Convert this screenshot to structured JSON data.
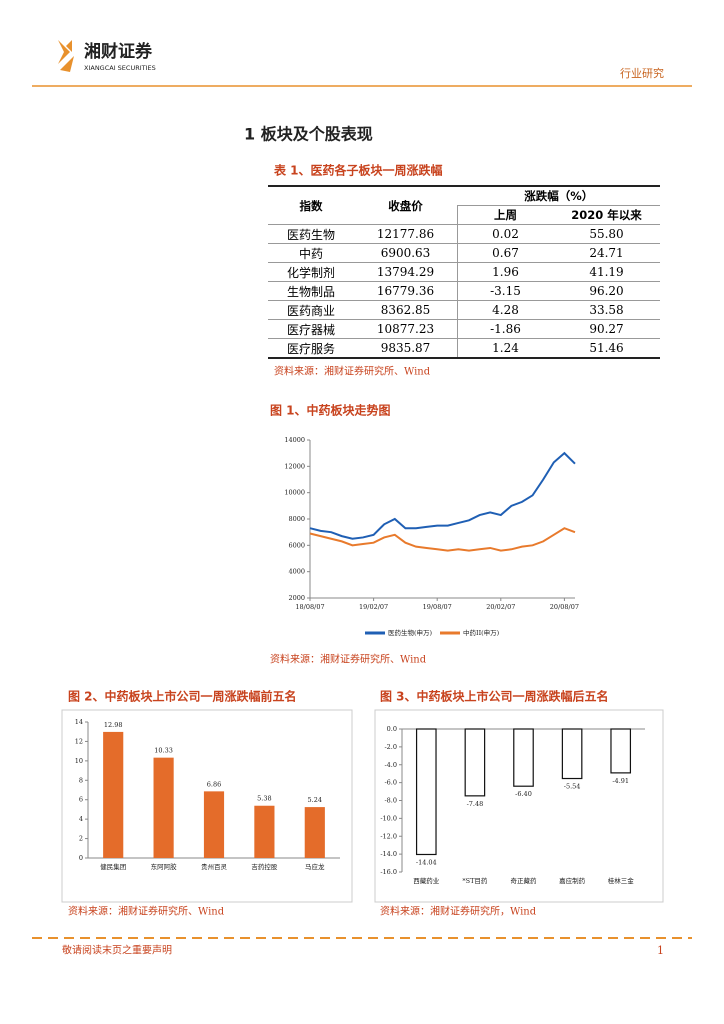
{
  "header": {
    "logo_cn": "湘财证券",
    "logo_en": "XIANGCAI SECURITIES",
    "category": "行业研究"
  },
  "section_title": "1 板块及个股表现",
  "table": {
    "caption": "表 1、医药各子板块一周涨跌幅",
    "headers": [
      "指数",
      "收盘价",
      "涨跌幅（%）",
      "上周",
      "2020 年以来"
    ],
    "rows": [
      [
        "医药生物",
        "12177.86",
        "0.02",
        "55.80"
      ],
      [
        "中药",
        "6900.63",
        "0.67",
        "24.71"
      ],
      [
        "化学制剂",
        "13794.29",
        "1.96",
        "41.19"
      ],
      [
        "生物制品",
        "16779.36",
        "-3.15",
        "96.20"
      ],
      [
        "医药商业",
        "8362.85",
        "4.28",
        "33.58"
      ],
      [
        "医疗器械",
        "10877.23",
        "-1.86",
        "90.27"
      ],
      [
        "医疗服务",
        "9835.87",
        "1.24",
        "51.46"
      ]
    ],
    "source": "资料来源：湘财证券研究所、Wind"
  },
  "chart_data": [
    {
      "type": "line",
      "title": "图 1、中药板块走势图",
      "categories": [
        "18/08/07",
        null,
        null,
        null,
        null,
        null,
        "19/02/07",
        null,
        null,
        null,
        null,
        null,
        "19/08/07",
        null,
        null,
        null,
        null,
        null,
        "20/02/07",
        null,
        null,
        null,
        null,
        null,
        "20/08/07",
        null
      ],
      "series": [
        {
          "name": "医药生物(申万)",
          "color": "#1f5fb4",
          "values": [
            7300,
            7100,
            7000,
            6700,
            6500,
            6600,
            6800,
            7600,
            8000,
            7300,
            7300,
            7400,
            7500,
            7500,
            7700,
            7900,
            8300,
            8500,
            8300,
            9000,
            9300,
            9800,
            11000,
            12300,
            13000,
            12200
          ]
        },
        {
          "name": "中药II(申万)",
          "color": "#e87a2c",
          "values": [
            6900,
            6700,
            6500,
            6300,
            6000,
            6100,
            6200,
            6600,
            6800,
            6200,
            5900,
            5800,
            5700,
            5600,
            5700,
            5600,
            5700,
            5800,
            5600,
            5700,
            5900,
            6000,
            6300,
            6800,
            7300,
            7000
          ]
        }
      ],
      "ylim": [
        2000,
        14000
      ],
      "yticks": [
        2000,
        4000,
        6000,
        8000,
        10000,
        12000,
        14000
      ],
      "source": "资料来源：湘财证券研究所、Wind"
    },
    {
      "type": "bar",
      "title": "图 2、中药板块上市公司一周涨跌幅前五名",
      "categories": [
        "健民集团",
        "东阿阿胶",
        "贵州百灵",
        "吉药控股",
        "马应龙"
      ],
      "values": [
        12.98,
        10.33,
        6.86,
        5.38,
        5.24
      ],
      "color": "#e46c2a",
      "ylim": [
        0,
        14
      ],
      "yticks": [
        0,
        2,
        4,
        6,
        8,
        10,
        12,
        14
      ],
      "source": "资料来源：湘财证券研究所、Wind"
    },
    {
      "type": "bar",
      "title": "图 3、中药板块上市公司一周涨跌幅后五名",
      "categories": [
        "西藏药业",
        "*ST目药",
        "奇正藏药",
        "嘉应制药",
        "桂林三金"
      ],
      "values": [
        -14.04,
        -7.48,
        -6.4,
        -5.54,
        -4.91
      ],
      "value_labels": [
        "-14.04",
        "-7.48",
        "-6.40",
        "-5.54",
        "-4.91"
      ],
      "color": "#ffffff",
      "ylim": [
        -16,
        0
      ],
      "yticks": [
        {
          "value": 0,
          "label": "0.0"
        },
        {
          "value": -2,
          "label": "-2.0"
        },
        {
          "value": -4,
          "label": "-4.0"
        },
        {
          "value": -6,
          "label": "-6.0"
        },
        {
          "value": -8,
          "label": "-8.0"
        },
        {
          "value": -10,
          "label": "-10.0"
        },
        {
          "value": -12,
          "label": "-12.0"
        },
        {
          "value": -14,
          "label": "-14.0"
        },
        {
          "value": -16,
          "label": "-16.0"
        }
      ],
      "source": "资料来源：湘财证券研究所，Wind"
    }
  ],
  "footer": {
    "notice": "敬请阅读末页之重要声明",
    "page": "1"
  }
}
